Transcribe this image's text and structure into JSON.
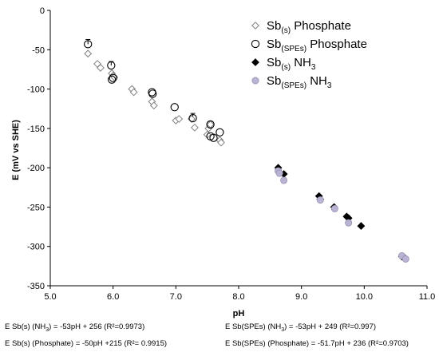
{
  "chart_data": {
    "type": "scatter",
    "xlabel": "pH",
    "ylabel": "E (mV vs SHE)",
    "xlim": [
      5.0,
      11.0
    ],
    "ylim": [
      -350,
      0
    ],
    "xticks": [
      "5.0",
      "6.0",
      "7.0",
      "8.0",
      "9.0",
      "10.0",
      "11.0"
    ],
    "yticks": [
      "0",
      "-50",
      "-100",
      "-150",
      "-200",
      "-250",
      "-300",
      "-350"
    ],
    "grid": false,
    "legend_position": "top-right",
    "series": [
      {
        "name": "Sb(s) Phosphate",
        "label_main": "Sb",
        "label_sub": "(s)",
        "label_rest": " Phosphate",
        "marker": "diamond-open",
        "color": "#808080",
        "points": [
          [
            5.6,
            -55
          ],
          [
            5.75,
            -68
          ],
          [
            5.8,
            -73
          ],
          [
            5.98,
            -80
          ],
          [
            6.0,
            -83
          ],
          [
            6.02,
            -85
          ],
          [
            6.3,
            -100
          ],
          [
            6.33,
            -104
          ],
          [
            6.62,
            -116
          ],
          [
            6.65,
            -121
          ],
          [
            7.0,
            -140
          ],
          [
            7.05,
            -138
          ],
          [
            7.25,
            -138
          ],
          [
            7.3,
            -149
          ],
          [
            7.5,
            -158
          ],
          [
            7.52,
            -150
          ],
          [
            7.55,
            -145
          ],
          [
            7.7,
            -165
          ],
          [
            7.72,
            -168
          ]
        ]
      },
      {
        "name": "Sb(SPEs) Phosphate",
        "label_main": "Sb",
        "label_sub": "(SPEs)",
        "label_rest": " Phosphate",
        "marker": "circle-open",
        "color": "#000000",
        "points": [
          [
            5.6,
            -43
          ],
          [
            5.97,
            -70
          ],
          [
            5.98,
            -88
          ],
          [
            6.0,
            -86
          ],
          [
            6.62,
            -104
          ],
          [
            6.63,
            -106
          ],
          [
            6.98,
            -123
          ],
          [
            7.27,
            -137
          ],
          [
            7.55,
            -145
          ],
          [
            7.55,
            -160
          ],
          [
            7.6,
            -162
          ],
          [
            7.7,
            -155
          ]
        ]
      },
      {
        "name": "Sb(s) NH3",
        "label_main": "Sb",
        "label_sub": "(s)",
        "label_rest": " NH",
        "label_sub2": "3",
        "marker": "diamond-filled",
        "color": "#000000",
        "points": [
          [
            8.63,
            -200
          ],
          [
            8.72,
            -208
          ],
          [
            9.28,
            -236
          ],
          [
            9.3,
            -240
          ],
          [
            9.52,
            -250
          ],
          [
            9.72,
            -262
          ],
          [
            9.75,
            -264
          ],
          [
            9.95,
            -274
          ],
          [
            10.6,
            -313
          ],
          [
            10.65,
            -315
          ]
        ]
      },
      {
        "name": "Sb(SPEs) NH3",
        "label_main": "Sb",
        "label_sub": "(SPEs)",
        "label_rest": " NH",
        "label_sub2": "3",
        "marker": "circle-filled",
        "color": "#b9b2d3",
        "points": [
          [
            8.63,
            -204
          ],
          [
            8.65,
            -207
          ],
          [
            8.72,
            -216
          ],
          [
            9.3,
            -241
          ],
          [
            9.53,
            -252
          ],
          [
            9.75,
            -270
          ],
          [
            10.6,
            -312
          ],
          [
            10.66,
            -316
          ]
        ]
      }
    ],
    "error_bars": [
      [
        5.6,
        -43,
        6
      ],
      [
        5.97,
        -70,
        5
      ],
      [
        7.27,
        -137,
        6
      ],
      [
        7.55,
        -145,
        4
      ]
    ]
  },
  "equations": {
    "left_1": {
      "pre": "E Sb(s) (NH",
      "sub": "3",
      "post": ") = -53pH + 256 (R²=0.9973)"
    },
    "left_2": {
      "pre": "E Sb(s) (Phosphate) = -50pH +215 (R²= 0.9915)",
      "sub": "",
      "post": ""
    },
    "right_1": {
      "pre": "E Sb(SPEs) (NH",
      "sub": "3",
      "post": ") = -53pH + 249 (R²=0.997)"
    },
    "right_2": {
      "pre": "E Sb(SPEs) (Phosphate) = -51.7pH + 236 (R²=0.9703)",
      "sub": "",
      "post": ""
    }
  }
}
